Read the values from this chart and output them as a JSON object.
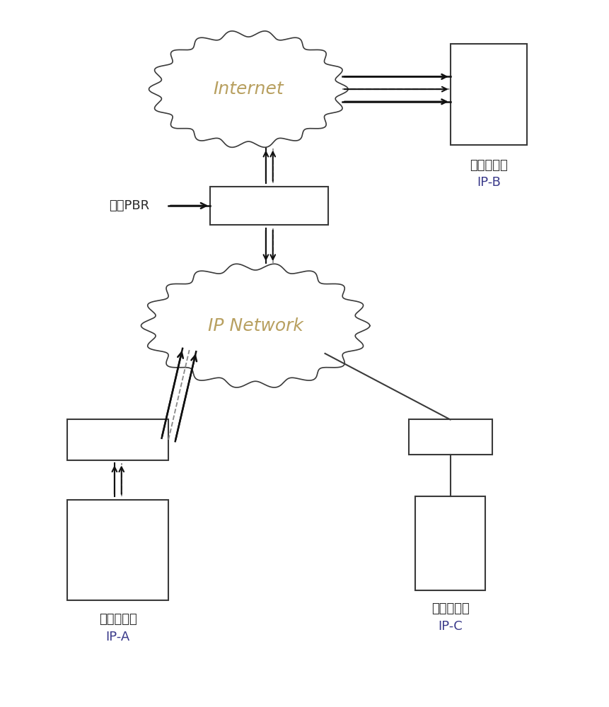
{
  "background_color": "#ffffff",
  "internet_label": "Internet",
  "internet_label_color": "#b8a060",
  "ipnetwork_label": "IP Network",
  "ipnetwork_label_color": "#b8a060",
  "label_b_line1": "公网服务器",
  "label_b_line2": "IP-B",
  "label_a_line1": "公网服务器",
  "label_a_line2": "IP-A",
  "label_c_line1": "公网服务器",
  "label_c_line2": "IP-C",
  "label_pbr": "配置PBR",
  "line_color": "#3a3a3a",
  "arrow_color": "#111111",
  "dashed_color": "#888888",
  "text_color": "#2a2a2a",
  "ip_b_color": "#3a3a8a",
  "ip_ac_color": "#3a3a8a"
}
